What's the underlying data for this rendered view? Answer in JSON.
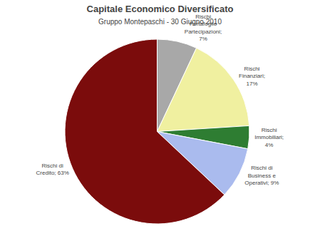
{
  "chart_data": {
    "type": "pie",
    "title": "Capitale Economico Diversificato",
    "subtitle": "Gruppo Montepaschi - 30 Giugno 2010",
    "categories": [
      "Rischi\nPortafoglio\nPartecipazioni;\n7%",
      "Rischi\nFinanziari;\n17%",
      "Rischi\nImmobiliari;\n4%",
      "Rischi di\nBusiness e\nOperativi; 9%",
      "Rischi di\nCredito; 63%"
    ],
    "values": [
      7,
      17,
      4,
      9,
      63
    ],
    "colors": [
      "#A8A8A8",
      "#F0F0A0",
      "#2E7D32",
      "#AABBEE",
      "#7B0C0C"
    ]
  }
}
